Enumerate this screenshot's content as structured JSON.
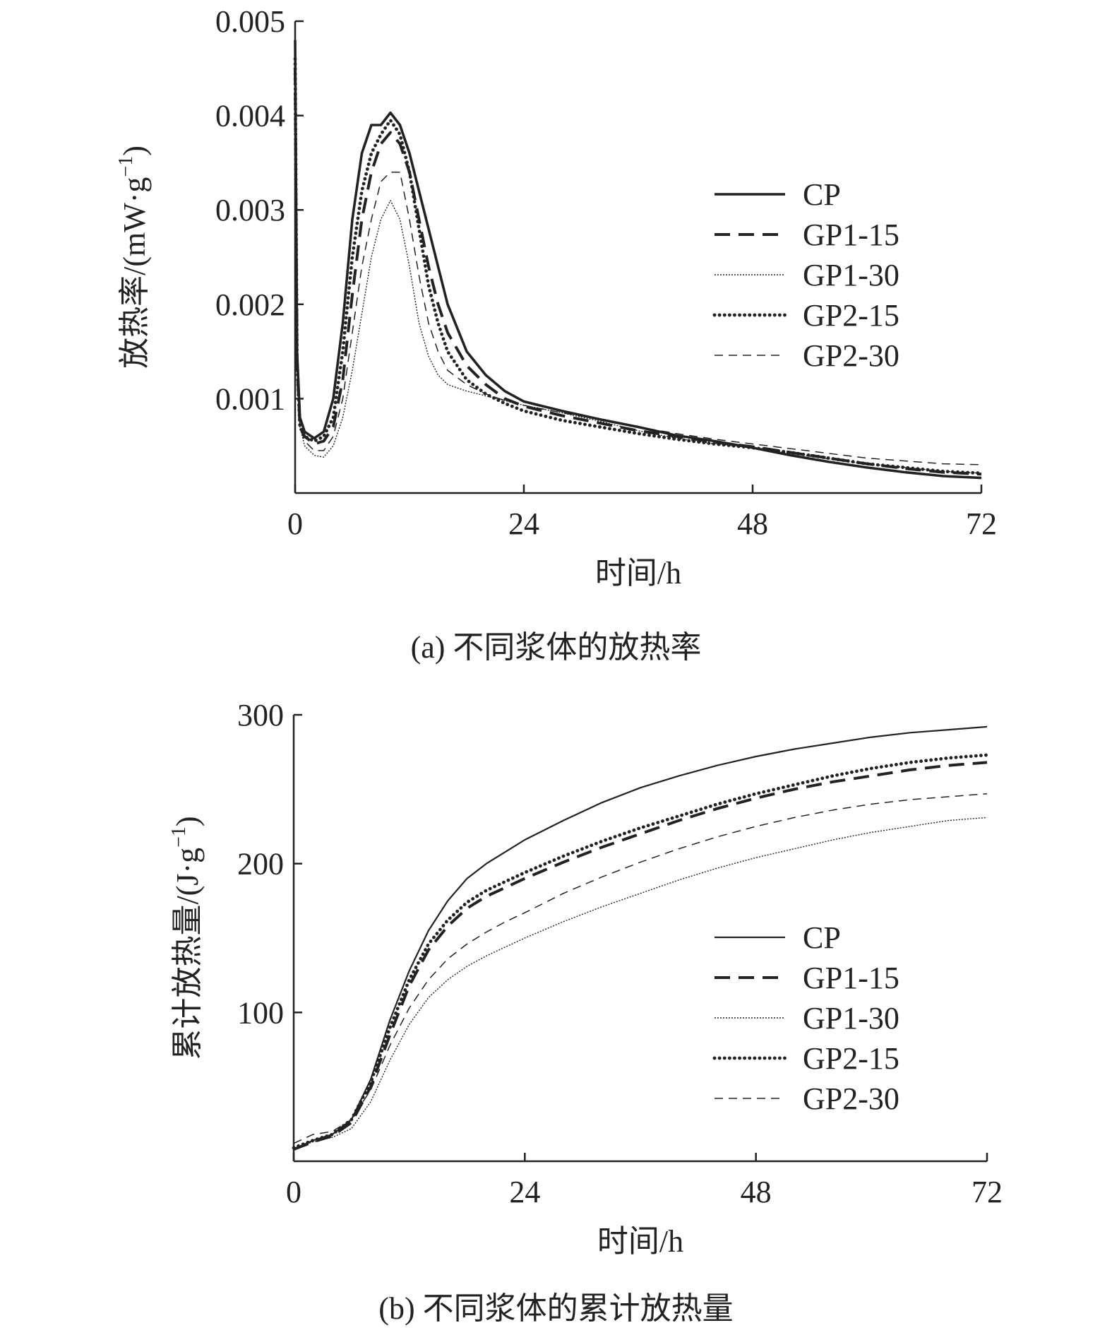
{
  "chart_data": [
    {
      "id": "a",
      "type": "line",
      "caption": "(a) 不同浆体的放热率",
      "xlabel": "时间/h",
      "ylabel": "放热率/(mW·g",
      "ylabel_sup": "−1",
      "ylabel_close": ")",
      "xlim": [
        0,
        72
      ],
      "ylim": [
        0,
        0.005
      ],
      "xticks": [
        0,
        24,
        48,
        72
      ],
      "xtick_labels": [
        "0",
        "24",
        "48",
        "72"
      ],
      "yticks": [
        0.001,
        0.002,
        0.003,
        0.004,
        0.005
      ],
      "ytick_labels": [
        "0.001",
        "0.002",
        "0.003",
        "0.004",
        "0.005"
      ],
      "legend_position": "right",
      "series": [
        {
          "name": "CP",
          "style": "solid-thick",
          "x": [
            0,
            0.2,
            0.5,
            1,
            2,
            3,
            4,
            5,
            6,
            7,
            8,
            9,
            10,
            11,
            12,
            13,
            14,
            15,
            16,
            18,
            20,
            22,
            24,
            28,
            32,
            36,
            40,
            44,
            48,
            52,
            56,
            60,
            64,
            68,
            72
          ],
          "y": [
            0.0048,
            0.0015,
            0.0008,
            0.00065,
            0.00058,
            0.00065,
            0.001,
            0.0018,
            0.0029,
            0.0036,
            0.0039,
            0.0039,
            0.00403,
            0.0039,
            0.0036,
            0.0032,
            0.0028,
            0.0024,
            0.002,
            0.0015,
            0.00125,
            0.00108,
            0.00097,
            0.00087,
            0.00078,
            0.0007,
            0.00061,
            0.00055,
            0.00048,
            0.0004,
            0.00033,
            0.00027,
            0.00022,
            0.00018,
            0.00016
          ]
        },
        {
          "name": "GP1-15",
          "style": "dashed-thick",
          "x": [
            0,
            0.2,
            0.5,
            1,
            2,
            3,
            4,
            5,
            6,
            7,
            8,
            9,
            10,
            11,
            12,
            13,
            14,
            15,
            16,
            18,
            20,
            22,
            24,
            28,
            32,
            36,
            40,
            44,
            48,
            52,
            56,
            60,
            64,
            68,
            72
          ],
          "y": [
            0.0045,
            0.0014,
            0.0007,
            0.0006,
            0.00052,
            0.00055,
            0.0007,
            0.0012,
            0.0021,
            0.0029,
            0.0034,
            0.0037,
            0.00382,
            0.0037,
            0.0034,
            0.0029,
            0.0024,
            0.002,
            0.0017,
            0.00135,
            0.00115,
            0.001,
            0.00092,
            0.00082,
            0.00074,
            0.00066,
            0.0006,
            0.00054,
            0.00049,
            0.00043,
            0.00037,
            0.00031,
            0.00026,
            0.00022,
            0.0002
          ]
        },
        {
          "name": "GP1-30",
          "style": "dotted-thin",
          "x": [
            0,
            0.2,
            0.5,
            1,
            2,
            3,
            4,
            5,
            6,
            7,
            8,
            9,
            10,
            11,
            12,
            13,
            14,
            15,
            16,
            18,
            20,
            22,
            24,
            28,
            32,
            36,
            40,
            44,
            48,
            52,
            56,
            60,
            64,
            68,
            72
          ],
          "y": [
            0.0043,
            0.0013,
            0.0007,
            0.0005,
            0.0004,
            0.00038,
            0.0005,
            0.0008,
            0.0013,
            0.0019,
            0.0025,
            0.0029,
            0.0031,
            0.0029,
            0.0024,
            0.0018,
            0.00145,
            0.00125,
            0.00115,
            0.00108,
            0.00103,
            0.00098,
            0.00093,
            0.00085,
            0.00076,
            0.00066,
            0.00058,
            0.00052,
            0.00048,
            0.00042,
            0.00036,
            0.00031,
            0.00027,
            0.00023,
            0.00021
          ]
        },
        {
          "name": "GP2-15",
          "style": "dotted-thick",
          "x": [
            0,
            0.2,
            0.5,
            1,
            2,
            3,
            4,
            5,
            6,
            7,
            8,
            9,
            10,
            11,
            12,
            13,
            14,
            15,
            16,
            18,
            20,
            22,
            24,
            28,
            32,
            36,
            40,
            44,
            48,
            52,
            56,
            60,
            64,
            68,
            72
          ],
          "y": [
            0.0046,
            0.0014,
            0.0007,
            0.0006,
            0.00055,
            0.0006,
            0.0008,
            0.0015,
            0.0025,
            0.0032,
            0.0036,
            0.0038,
            0.00395,
            0.0038,
            0.0034,
            0.0028,
            0.0022,
            0.0018,
            0.0015,
            0.0012,
            0.00105,
            0.00095,
            0.00087,
            0.00077,
            0.0007,
            0.00063,
            0.00057,
            0.00052,
            0.00048,
            0.00043,
            0.00037,
            0.00031,
            0.00027,
            0.00023,
            0.00021
          ]
        },
        {
          "name": "GP2-30",
          "style": "dashed-thin",
          "x": [
            0,
            0.2,
            0.5,
            1,
            2,
            3,
            4,
            5,
            6,
            7,
            8,
            9,
            10,
            11,
            12,
            13,
            14,
            15,
            16,
            18,
            20,
            22,
            24,
            28,
            32,
            36,
            40,
            44,
            48,
            52,
            56,
            60,
            64,
            68,
            72
          ],
          "y": [
            0.0044,
            0.0013,
            0.0007,
            0.00055,
            0.00045,
            0.00045,
            0.0006,
            0.001,
            0.0017,
            0.0024,
            0.0029,
            0.0033,
            0.0034,
            0.0034,
            0.0029,
            0.0023,
            0.0018,
            0.0015,
            0.0013,
            0.00115,
            0.00105,
            0.00098,
            0.00093,
            0.00085,
            0.00078,
            0.0007,
            0.00063,
            0.00057,
            0.00052,
            0.00047,
            0.00042,
            0.00037,
            0.00034,
            0.00031,
            0.0003
          ]
        }
      ]
    },
    {
      "id": "b",
      "type": "line",
      "caption": "(b) 不同浆体的累计放热量",
      "xlabel": "时间/h",
      "ylabel": "累计放热量/(J·g",
      "ylabel_sup": "−1",
      "ylabel_close": ")",
      "xlim": [
        0,
        72
      ],
      "ylim": [
        0,
        300
      ],
      "xticks": [
        0,
        24,
        48,
        72
      ],
      "xtick_labels": [
        "0",
        "24",
        "48",
        "72"
      ],
      "yticks": [
        100,
        200,
        300
      ],
      "ytick_labels": [
        "100",
        "200",
        "300"
      ],
      "legend_position": "right",
      "series": [
        {
          "name": "CP",
          "style": "solid-thin",
          "x": [
            0,
            2,
            4,
            6,
            8,
            10,
            12,
            14,
            16,
            18,
            20,
            22,
            24,
            28,
            32,
            36,
            40,
            44,
            48,
            52,
            56,
            60,
            64,
            68,
            72
          ],
          "y": [
            8,
            14,
            18,
            28,
            55,
            95,
            128,
            155,
            175,
            190,
            200,
            208,
            216,
            229,
            241,
            251,
            259,
            266,
            272,
            277,
            281,
            285,
            288,
            290,
            292
          ]
        },
        {
          "name": "GP1-15",
          "style": "dashed-thick",
          "x": [
            0,
            2,
            4,
            6,
            8,
            10,
            12,
            14,
            16,
            18,
            20,
            22,
            24,
            28,
            32,
            36,
            40,
            44,
            48,
            52,
            56,
            60,
            64,
            68,
            72
          ],
          "y": [
            8,
            13,
            17,
            26,
            50,
            85,
            118,
            142,
            158,
            170,
            178,
            184,
            190,
            201,
            211,
            220,
            229,
            237,
            244,
            250,
            255,
            259,
            263,
            266,
            268
          ]
        },
        {
          "name": "GP1-30",
          "style": "dotted-thin",
          "x": [
            0,
            2,
            4,
            6,
            8,
            10,
            12,
            14,
            16,
            18,
            20,
            22,
            24,
            28,
            32,
            36,
            40,
            44,
            48,
            52,
            56,
            60,
            64,
            68,
            72
          ],
          "y": [
            8,
            13,
            16,
            22,
            40,
            68,
            92,
            110,
            122,
            131,
            138,
            144,
            150,
            161,
            171,
            180,
            189,
            197,
            204,
            210,
            216,
            221,
            225,
            229,
            231
          ]
        },
        {
          "name": "GP2-15",
          "style": "dotted-thick",
          "x": [
            0,
            2,
            4,
            6,
            8,
            10,
            12,
            14,
            16,
            18,
            20,
            22,
            24,
            28,
            32,
            36,
            40,
            44,
            48,
            52,
            56,
            60,
            64,
            68,
            72
          ],
          "y": [
            9,
            14,
            18,
            28,
            53,
            90,
            122,
            146,
            162,
            174,
            182,
            188,
            194,
            205,
            215,
            224,
            232,
            240,
            247,
            253,
            259,
            264,
            268,
            271,
            273
          ]
        },
        {
          "name": "GP2-30",
          "style": "dashed-thin",
          "x": [
            0,
            2,
            4,
            6,
            8,
            10,
            12,
            14,
            16,
            18,
            20,
            22,
            24,
            28,
            32,
            36,
            40,
            44,
            48,
            52,
            56,
            60,
            64,
            68,
            72
          ],
          "y": [
            12,
            18,
            20,
            28,
            48,
            78,
            103,
            122,
            136,
            146,
            154,
            161,
            167,
            180,
            191,
            201,
            210,
            218,
            225,
            231,
            236,
            240,
            243,
            245,
            247
          ]
        }
      ]
    }
  ]
}
